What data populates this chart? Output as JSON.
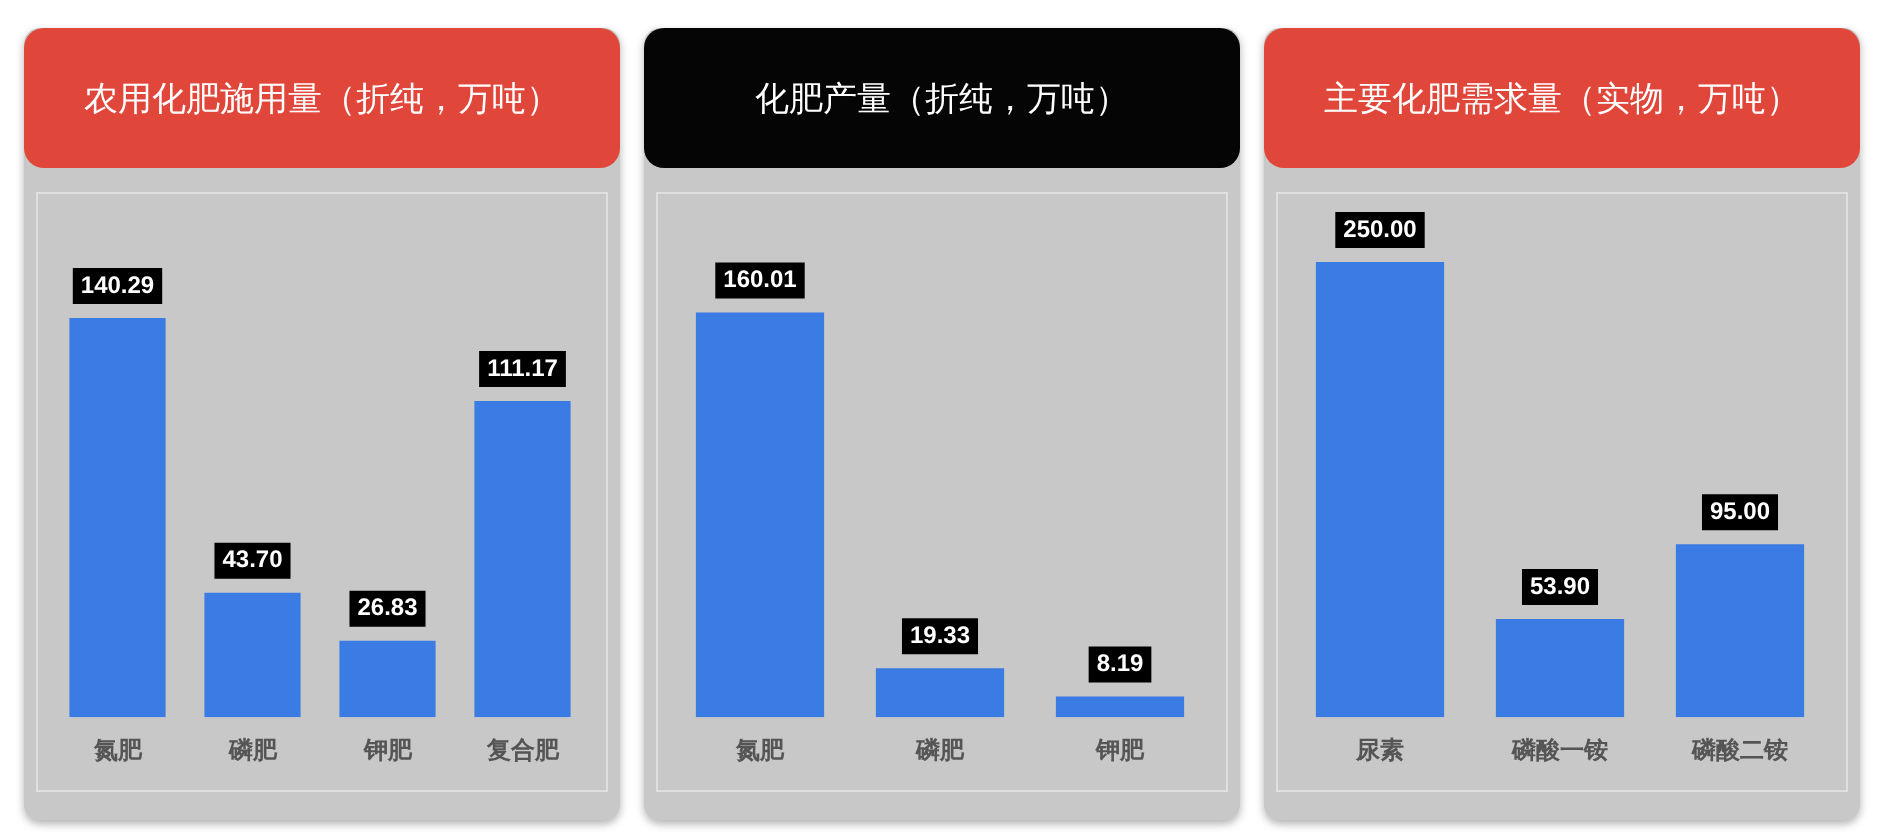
{
  "chart_data": [
    {
      "type": "bar",
      "title": "农用化肥施用量（折纯，万吨）",
      "categories": [
        "氮肥",
        "磷肥",
        "钾肥",
        "复合肥"
      ],
      "values": [
        140.29,
        43.7,
        26.83,
        111.17
      ],
      "value_labels": [
        "140.29",
        "43.70",
        "26.83",
        "111.17"
      ],
      "color": "#3a7be4",
      "tick_labels": "x",
      "grid": false,
      "legend": false
    },
    {
      "type": "bar",
      "title": "化肥产量（折纯，万吨）",
      "categories": [
        "氮肥",
        "磷肥",
        "钾肥"
      ],
      "values": [
        160.01,
        19.33,
        8.19
      ],
      "value_labels": [
        "160.01",
        "19.33",
        "8.19"
      ],
      "color": "#3a7be4",
      "tick_labels": "x",
      "grid": false,
      "legend": false
    },
    {
      "type": "bar",
      "title": "主要化肥需求量（实物，万吨）",
      "categories": [
        "尿素",
        "磷酸一铵",
        "磷酸二铵"
      ],
      "values": [
        250,
        53.9,
        95
      ],
      "value_labels": [
        "250.00",
        "53.90",
        "95.00"
      ],
      "color": "#3a7be4",
      "tick_labels": "x",
      "grid": false,
      "legend": false
    }
  ]
}
